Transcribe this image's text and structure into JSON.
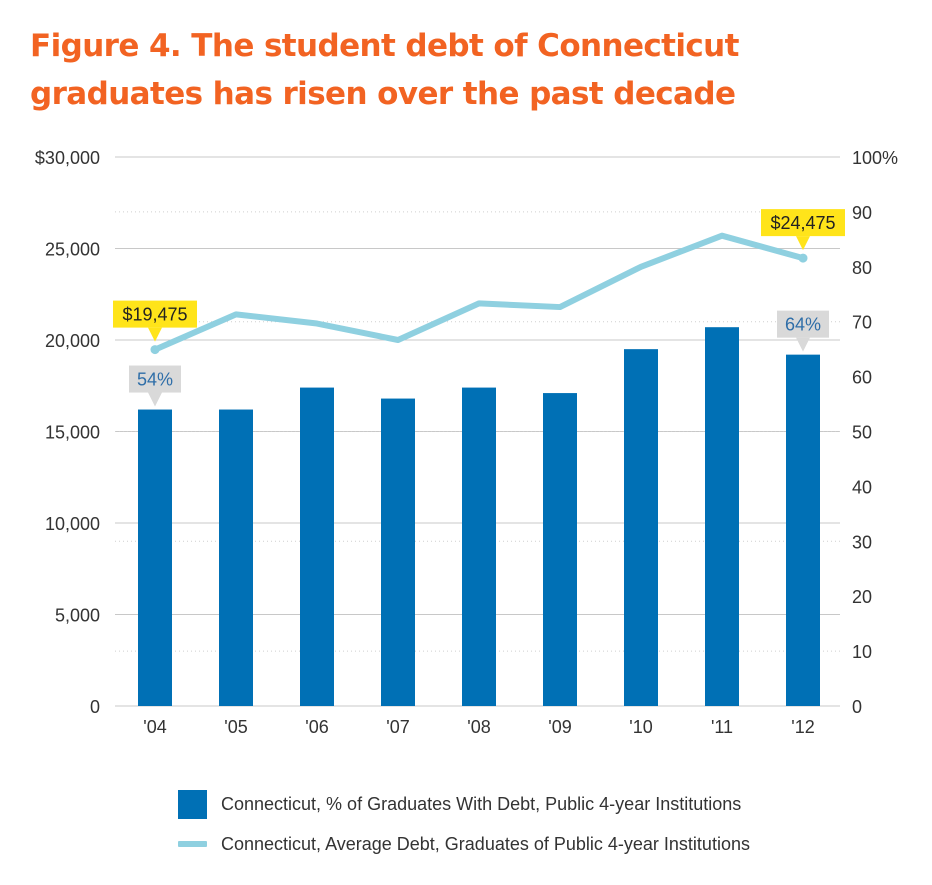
{
  "title": "Figure 4. The student debt of Connecticut graduates has risen over the past decade",
  "colors": {
    "bar": "#0070b5",
    "line": "#8fd0e0",
    "title": "#f26322",
    "callout_yellow": "#ffe41a",
    "callout_gray": "#d9d9d9",
    "pct_text": "#2f6ea8"
  },
  "chart_data": {
    "type": "bar",
    "categories": [
      "'04",
      "'05",
      "'06",
      "'07",
      "'08",
      "'09",
      "'10",
      "'11",
      "'12"
    ],
    "left_axis": {
      "ticks": [
        "$30,000",
        "25,000",
        "20,000",
        "15,000",
        "10,000",
        "5,000",
        "0"
      ],
      "ylim": [
        0,
        30000
      ]
    },
    "right_axis": {
      "ticks": [
        "100%",
        "90",
        "80",
        "70",
        "60",
        "50",
        "40",
        "30",
        "20",
        "10",
        "0"
      ],
      "ylim": [
        0,
        100
      ]
    },
    "grid": true,
    "legend_position": "bottom",
    "series": [
      {
        "name": "Connecticut, % of Graduates With Debt, Public 4-year Institutions",
        "type": "bar",
        "axis": "right",
        "values": [
          54,
          54,
          58,
          56,
          58,
          57,
          65,
          69,
          64
        ]
      },
      {
        "name": "Connecticut, Average Debt, Graduates of Public 4-year Institutions",
        "type": "line",
        "axis": "left",
        "values": [
          19475,
          21400,
          20900,
          20000,
          22000,
          21800,
          24000,
          25700,
          24475
        ]
      }
    ],
    "annotations": [
      {
        "text": "$19,475",
        "series": 1,
        "index": 0,
        "style": "yellow"
      },
      {
        "text": "$24,475",
        "series": 1,
        "index": 8,
        "style": "yellow"
      },
      {
        "text": "54%",
        "series": 0,
        "index": 0,
        "style": "gray"
      },
      {
        "text": "64%",
        "series": 0,
        "index": 8,
        "style": "gray"
      }
    ]
  }
}
